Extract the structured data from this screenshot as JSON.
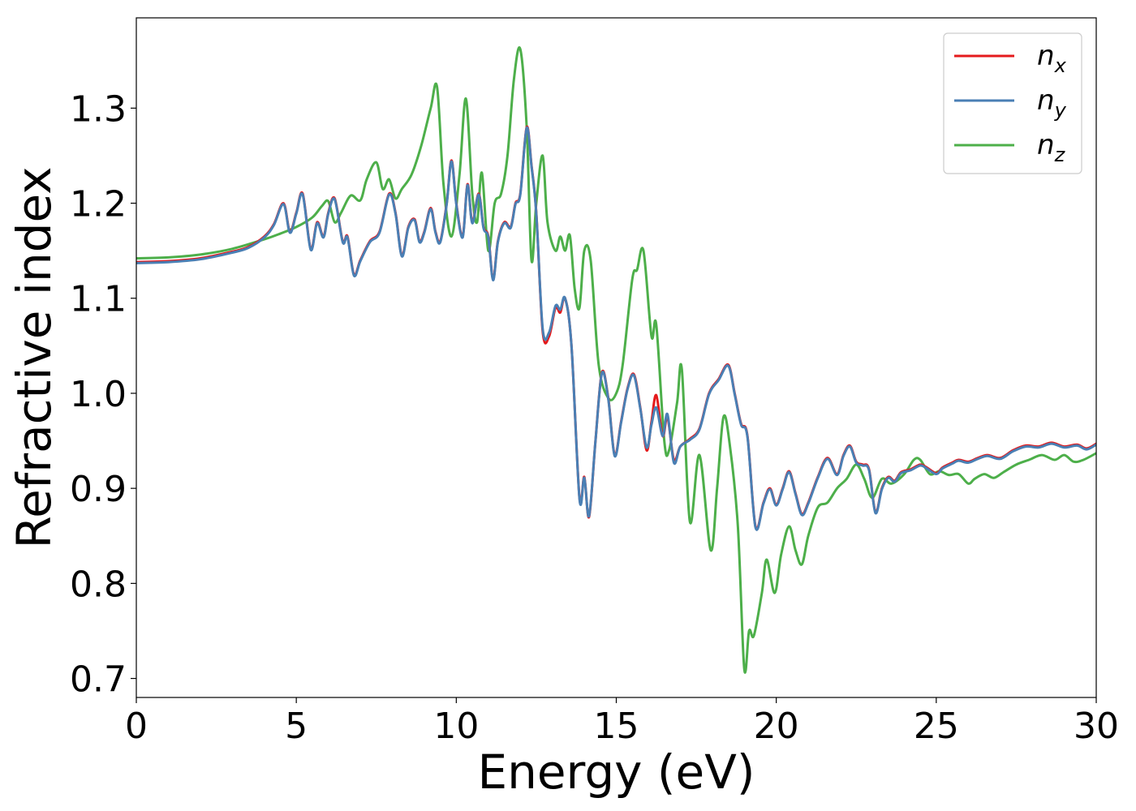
{
  "chart_data": {
    "type": "line",
    "xlabel": "Energy (eV)",
    "ylabel": "Refractive index",
    "xlim": [
      0,
      30
    ],
    "ylim": [
      0.68,
      1.395
    ],
    "xticks": [
      0,
      5,
      10,
      15,
      20,
      25,
      30
    ],
    "xtick_labels": [
      "0",
      "5",
      "10",
      "15",
      "20",
      "25",
      "30"
    ],
    "yticks": [
      0.7,
      0.8,
      0.9,
      1.0,
      1.1,
      1.2,
      1.3
    ],
    "ytick_labels": [
      "0.7",
      "0.8",
      "0.9",
      "1.0",
      "1.1",
      "1.2",
      "1.3"
    ],
    "grid": false,
    "legend_position": "top-right",
    "series": [
      {
        "name": "n_x",
        "label_base": "n",
        "label_sub": "x",
        "color": "#e41a1c",
        "x": [
          0,
          1,
          2,
          3,
          3.5,
          4,
          4.3,
          4.6,
          4.8,
          5.0,
          5.2,
          5.45,
          5.65,
          5.85,
          6.0,
          6.2,
          6.45,
          6.6,
          6.8,
          7.0,
          7.3,
          7.6,
          7.9,
          8.1,
          8.3,
          8.5,
          8.7,
          8.85,
          9.0,
          9.2,
          9.35,
          9.5,
          9.7,
          9.85,
          10.0,
          10.2,
          10.35,
          10.5,
          10.7,
          10.85,
          11.0,
          11.15,
          11.3,
          11.5,
          11.7,
          11.85,
          12.0,
          12.2,
          12.35,
          12.5,
          12.7,
          12.9,
          13.1,
          13.25,
          13.4,
          13.6,
          13.85,
          14.0,
          14.15,
          14.35,
          14.55,
          14.75,
          14.95,
          15.15,
          15.35,
          15.55,
          15.75,
          15.95,
          16.1,
          16.25,
          16.45,
          16.6,
          16.8,
          17.0,
          17.3,
          17.6,
          17.9,
          18.2,
          18.5,
          18.7,
          18.9,
          19.1,
          19.35,
          19.6,
          19.8,
          20.0,
          20.2,
          20.4,
          20.6,
          20.8,
          21.0,
          21.3,
          21.6,
          21.9,
          22.1,
          22.3,
          22.5,
          22.7,
          22.9,
          23.1,
          23.3,
          23.5,
          23.7,
          23.9,
          24.2,
          24.5,
          24.7,
          25.0,
          25.2,
          25.5,
          25.7,
          26.0,
          26.3,
          26.6,
          27.0,
          27.4,
          27.8,
          28.2,
          28.6,
          29.0,
          29.4,
          29.7,
          30.0
        ],
        "y": [
          1.138,
          1.139,
          1.142,
          1.149,
          1.154,
          1.165,
          1.178,
          1.2,
          1.17,
          1.19,
          1.21,
          1.152,
          1.18,
          1.165,
          1.19,
          1.205,
          1.16,
          1.165,
          1.125,
          1.14,
          1.16,
          1.17,
          1.21,
          1.19,
          1.145,
          1.175,
          1.183,
          1.16,
          1.17,
          1.195,
          1.17,
          1.16,
          1.2,
          1.245,
          1.2,
          1.165,
          1.22,
          1.18,
          1.21,
          1.175,
          1.165,
          1.12,
          1.16,
          1.18,
          1.175,
          1.2,
          1.21,
          1.28,
          1.24,
          1.19,
          1.065,
          1.06,
          1.09,
          1.085,
          1.1,
          1.05,
          0.89,
          0.912,
          0.87,
          0.95,
          1.022,
          0.995,
          0.935,
          0.97,
          1.005,
          1.02,
          0.985,
          0.94,
          0.97,
          0.998,
          0.955,
          0.975,
          0.93,
          0.944,
          0.952,
          0.963,
          1.0,
          1.015,
          1.03,
          1.0,
          0.968,
          0.955,
          0.86,
          0.885,
          0.9,
          0.883,
          0.9,
          0.918,
          0.895,
          0.873,
          0.885,
          0.912,
          0.932,
          0.915,
          0.935,
          0.945,
          0.928,
          0.925,
          0.92,
          0.875,
          0.9,
          0.912,
          0.908,
          0.917,
          0.92,
          0.925,
          0.922,
          0.916,
          0.922,
          0.927,
          0.93,
          0.928,
          0.932,
          0.935,
          0.932,
          0.94,
          0.945,
          0.944,
          0.948,
          0.944,
          0.946,
          0.942,
          0.947
        ]
      },
      {
        "name": "n_y",
        "label_base": "n",
        "label_sub": "y",
        "color": "#4a7fb4",
        "x": [
          0,
          1,
          2,
          3,
          3.5,
          4,
          4.3,
          4.6,
          4.8,
          5.0,
          5.2,
          5.45,
          5.65,
          5.85,
          6.0,
          6.2,
          6.45,
          6.6,
          6.8,
          7.0,
          7.3,
          7.6,
          7.9,
          8.1,
          8.3,
          8.5,
          8.7,
          8.85,
          9.0,
          9.2,
          9.35,
          9.5,
          9.7,
          9.85,
          10.0,
          10.2,
          10.35,
          10.5,
          10.7,
          10.85,
          11.0,
          11.15,
          11.3,
          11.5,
          11.7,
          11.85,
          12.0,
          12.2,
          12.35,
          12.5,
          12.7,
          12.9,
          13.1,
          13.25,
          13.4,
          13.6,
          13.85,
          14.0,
          14.15,
          14.35,
          14.55,
          14.75,
          14.95,
          15.15,
          15.35,
          15.55,
          15.75,
          15.95,
          16.1,
          16.25,
          16.45,
          16.6,
          16.8,
          17.0,
          17.3,
          17.6,
          17.9,
          18.2,
          18.5,
          18.7,
          18.9,
          19.1,
          19.35,
          19.6,
          19.8,
          20.0,
          20.2,
          20.4,
          20.6,
          20.8,
          21.0,
          21.3,
          21.6,
          21.9,
          22.1,
          22.3,
          22.5,
          22.7,
          22.9,
          23.1,
          23.3,
          23.5,
          23.7,
          23.9,
          24.2,
          24.5,
          24.7,
          25.0,
          25.2,
          25.5,
          25.7,
          26.0,
          26.3,
          26.6,
          27.0,
          27.4,
          27.8,
          28.2,
          28.6,
          29.0,
          29.4,
          29.7,
          30.0
        ],
        "y": [
          1.137,
          1.138,
          1.141,
          1.148,
          1.153,
          1.164,
          1.177,
          1.199,
          1.169,
          1.189,
          1.209,
          1.151,
          1.179,
          1.164,
          1.189,
          1.204,
          1.159,
          1.164,
          1.124,
          1.139,
          1.159,
          1.169,
          1.209,
          1.189,
          1.144,
          1.174,
          1.182,
          1.159,
          1.169,
          1.194,
          1.169,
          1.159,
          1.199,
          1.244,
          1.199,
          1.164,
          1.219,
          1.179,
          1.209,
          1.174,
          1.164,
          1.119,
          1.159,
          1.179,
          1.174,
          1.199,
          1.209,
          1.279,
          1.239,
          1.189,
          1.068,
          1.064,
          1.092,
          1.088,
          1.1,
          1.05,
          0.889,
          0.911,
          0.871,
          0.95,
          1.021,
          0.994,
          0.934,
          0.969,
          1.004,
          1.019,
          0.984,
          0.943,
          0.967,
          0.985,
          0.955,
          0.978,
          0.927,
          0.944,
          0.951,
          0.962,
          0.999,
          1.014,
          1.029,
          0.999,
          0.967,
          0.954,
          0.859,
          0.884,
          0.899,
          0.882,
          0.899,
          0.917,
          0.894,
          0.872,
          0.884,
          0.911,
          0.931,
          0.914,
          0.934,
          0.944,
          0.927,
          0.924,
          0.919,
          0.874,
          0.899,
          0.911,
          0.907,
          0.916,
          0.919,
          0.924,
          0.921,
          0.915,
          0.921,
          0.926,
          0.929,
          0.927,
          0.931,
          0.934,
          0.931,
          0.939,
          0.944,
          0.943,
          0.947,
          0.943,
          0.945,
          0.941,
          0.946
        ]
      },
      {
        "name": "n_z",
        "label_base": "n",
        "label_sub": "z",
        "color": "#4daf4a",
        "x": [
          0,
          1,
          2,
          3,
          4,
          4.5,
          5.0,
          5.5,
          5.8,
          6.0,
          6.2,
          6.4,
          6.7,
          7.0,
          7.2,
          7.5,
          7.7,
          7.9,
          8.1,
          8.3,
          8.6,
          8.9,
          9.2,
          9.4,
          9.6,
          9.85,
          10.1,
          10.3,
          10.5,
          10.65,
          10.8,
          11.0,
          11.2,
          11.4,
          11.6,
          11.8,
          12.0,
          12.2,
          12.35,
          12.5,
          12.7,
          12.85,
          13.1,
          13.25,
          13.4,
          13.55,
          13.7,
          13.85,
          14.0,
          14.2,
          14.45,
          14.75,
          15.0,
          15.2,
          15.5,
          15.65,
          15.85,
          16.1,
          16.25,
          16.5,
          16.65,
          16.9,
          17.05,
          17.3,
          17.6,
          17.95,
          18.15,
          18.35,
          18.55,
          18.8,
          19.0,
          19.15,
          19.3,
          19.55,
          19.7,
          19.95,
          20.15,
          20.4,
          20.6,
          20.8,
          21.0,
          21.3,
          21.6,
          21.9,
          22.2,
          22.5,
          22.75,
          23.0,
          23.3,
          23.6,
          24.0,
          24.3,
          24.5,
          24.8,
          25.1,
          25.4,
          25.7,
          26.0,
          26.2,
          26.5,
          26.8,
          27.1,
          27.5,
          27.9,
          28.3,
          28.7,
          29.0,
          29.3,
          29.6,
          30.0
        ],
        "y": [
          1.142,
          1.143,
          1.146,
          1.152,
          1.162,
          1.168,
          1.175,
          1.185,
          1.197,
          1.202,
          1.18,
          1.19,
          1.208,
          1.203,
          1.225,
          1.243,
          1.215,
          1.225,
          1.205,
          1.215,
          1.23,
          1.26,
          1.3,
          1.322,
          1.22,
          1.165,
          1.23,
          1.31,
          1.21,
          1.18,
          1.232,
          1.15,
          1.2,
          1.21,
          1.25,
          1.33,
          1.362,
          1.28,
          1.14,
          1.2,
          1.25,
          1.18,
          1.15,
          1.165,
          1.15,
          1.166,
          1.11,
          1.09,
          1.15,
          1.14,
          1.03,
          0.995,
          1.0,
          1.03,
          1.12,
          1.13,
          1.15,
          1.06,
          1.072,
          0.95,
          0.94,
          0.99,
          1.025,
          0.865,
          0.935,
          0.835,
          0.9,
          0.975,
          0.945,
          0.86,
          0.71,
          0.75,
          0.745,
          0.79,
          0.825,
          0.79,
          0.83,
          0.86,
          0.835,
          0.82,
          0.85,
          0.88,
          0.885,
          0.9,
          0.91,
          0.925,
          0.91,
          0.89,
          0.91,
          0.905,
          0.915,
          0.93,
          0.93,
          0.915,
          0.918,
          0.914,
          0.915,
          0.905,
          0.91,
          0.915,
          0.911,
          0.917,
          0.925,
          0.93,
          0.935,
          0.93,
          0.935,
          0.928,
          0.93,
          0.937
        ]
      }
    ]
  }
}
